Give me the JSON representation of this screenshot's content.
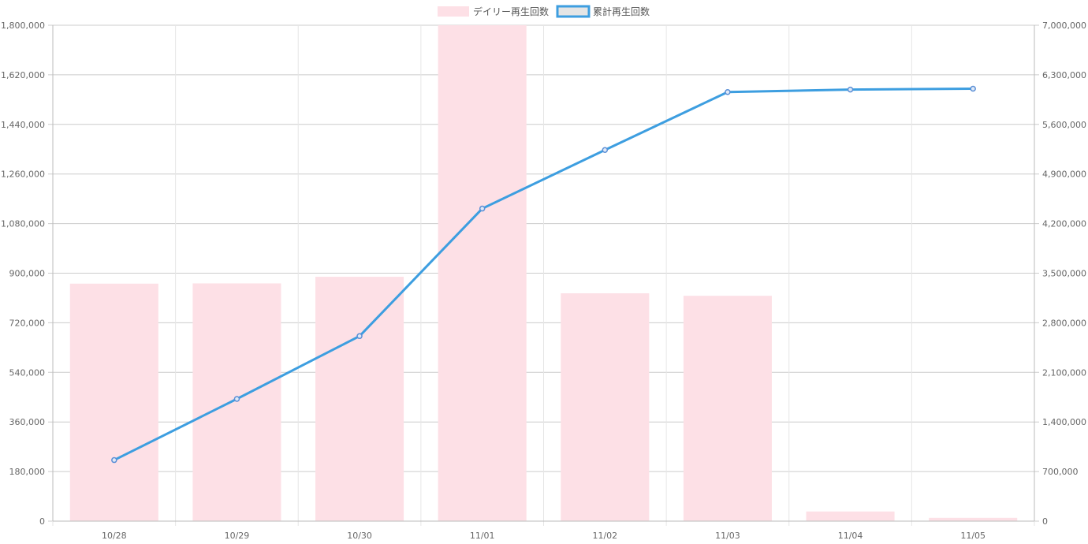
{
  "colors": {
    "daily_fill": "#fde0e6",
    "cumulative_line": "#3d9ee0",
    "cumulative_point": "#5b8fd6",
    "grid": "#cccccc",
    "tick": "#666666"
  },
  "legend": {
    "daily_label": "デイリー再生回数",
    "cumulative_label": "累計再生回数"
  },
  "chart_data": {
    "type": "bar",
    "legend_position": "top",
    "grid": true,
    "categories": [
      "10/28",
      "10/29",
      "10/30",
      "11/01",
      "11/02",
      "11/03",
      "11/04",
      "11/05"
    ],
    "series": [
      {
        "name": "デイリー再生回数",
        "type": "bar",
        "axis": "left",
        "values": [
          862000,
          863000,
          887000,
          1800000,
          827000,
          818000,
          35000,
          12000
        ]
      },
      {
        "name": "累計再生回数",
        "type": "line",
        "axis": "right",
        "values": [
          862000,
          1725000,
          2612000,
          4412000,
          5239000,
          6057000,
          6092000,
          6104000
        ]
      }
    ],
    "y_left": {
      "ylim": [
        0,
        1800000
      ],
      "ticks": [
        "0",
        "180,000",
        "360,000",
        "540,000",
        "720,000",
        "900,000",
        "1,080,000",
        "1,260,000",
        "1,440,000",
        "1,620,000",
        "1,800,000"
      ]
    },
    "y_right": {
      "ylim": [
        0,
        7000000
      ],
      "ticks": [
        "0",
        "700,000",
        "1,400,000",
        "2,100,000",
        "2,800,000",
        "3,500,000",
        "4,200,000",
        "4,900,000",
        "5,600,000",
        "6,300,000",
        "7,000,000"
      ]
    }
  }
}
